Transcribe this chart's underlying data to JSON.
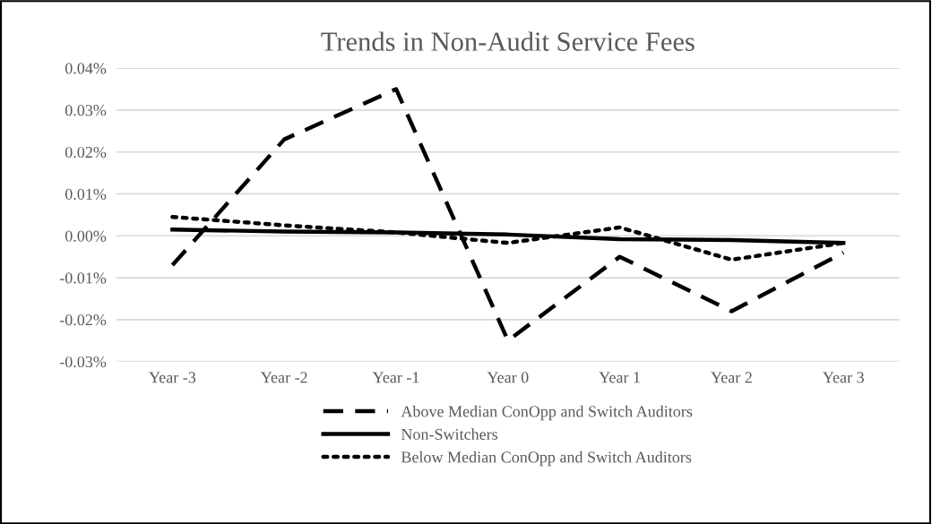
{
  "chart_data": {
    "type": "line",
    "title": "Trends in Non-Audit Service Fees",
    "categories": [
      "Year -3",
      "Year -2",
      "Year -1",
      "Year 0",
      "Year 1",
      "Year 2",
      "Year 3"
    ],
    "series": [
      {
        "name": "Above Median ConOpp and Switch Auditors",
        "color": "#000000",
        "line_style": "dashed",
        "values": [
          -0.007,
          0.023,
          0.035,
          -0.025,
          -0.005,
          -0.018,
          -0.004
        ]
      },
      {
        "name": "Non-Switchers",
        "color": "#000000",
        "line_style": "solid",
        "values": [
          0.0015,
          0.001,
          0.0008,
          0.0003,
          -0.0008,
          -0.001,
          -0.0017
        ]
      },
      {
        "name": "Below Median ConOpp and Switch Auditors",
        "color": "#000000",
        "line_style": "dotted",
        "values": [
          0.0045,
          0.0025,
          0.0008,
          -0.0017,
          0.002,
          -0.0057,
          -0.0017
        ]
      }
    ],
    "ylim": [
      -0.03,
      0.04
    ],
    "yticks": [
      {
        "value": -0.03,
        "label": "-0.03%"
      },
      {
        "value": -0.02,
        "label": "-0.02%"
      },
      {
        "value": -0.01,
        "label": "-0.01%"
      },
      {
        "value": 0,
        "label": "0.00%"
      },
      {
        "value": 0.01,
        "label": "0.01%"
      },
      {
        "value": 0.02,
        "label": "0.02%"
      },
      {
        "value": 0.03,
        "label": "0.03%"
      },
      {
        "value": 0.04,
        "label": "0.04%"
      }
    ],
    "grid": "y",
    "legend": "bottom"
  }
}
